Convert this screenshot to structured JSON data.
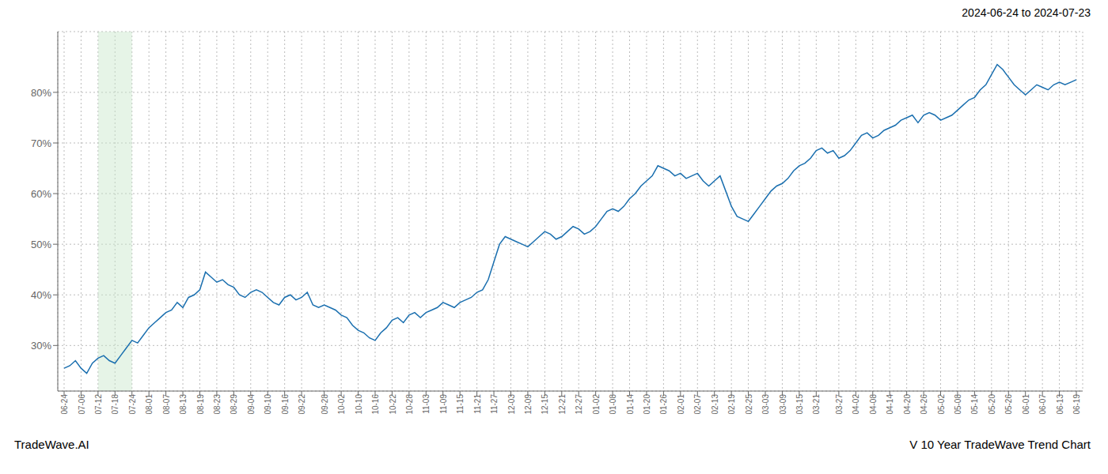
{
  "chart_data": {
    "type": "line",
    "title": "V 10 Year TradeWave Trend Chart",
    "subtitle": "2024-06-24 to 2024-07-23",
    "annotations": [
      "TradeWave.AI"
    ],
    "color": "#1a6faf",
    "grid": true,
    "ylim": [
      21,
      92
    ],
    "yticks": [
      {
        "value": 30,
        "label": "30%"
      },
      {
        "value": 40,
        "label": "40%"
      },
      {
        "value": 50,
        "label": "50%"
      },
      {
        "value": 60,
        "label": "60%"
      },
      {
        "value": 70,
        "label": "70%"
      },
      {
        "value": 80,
        "label": "80%"
      }
    ],
    "highlight": {
      "from": "07-12",
      "to": "07-24",
      "color": "#c8e6c9"
    },
    "categories": [
      "06-24",
      null,
      null,
      "07-06",
      null,
      null,
      "07-12",
      null,
      null,
      "07-18",
      null,
      null,
      "07-24",
      null,
      null,
      "08-01",
      null,
      null,
      "08-07",
      null,
      null,
      "08-13",
      null,
      null,
      "08-19",
      null,
      null,
      "08-23",
      null,
      null,
      "08-29",
      null,
      null,
      "09-04",
      null,
      null,
      "09-10",
      null,
      null,
      "09-16",
      null,
      null,
      "09-22",
      null,
      null,
      null,
      "09-28",
      null,
      null,
      "10-02",
      null,
      null,
      "10-10",
      null,
      null,
      "10-16",
      null,
      null,
      "10-22",
      null,
      null,
      "10-28",
      null,
      null,
      "11-03",
      null,
      null,
      "11-09",
      null,
      null,
      "11-15",
      null,
      null,
      "11-21",
      null,
      null,
      "11-27",
      null,
      null,
      "12-03",
      null,
      null,
      "12-09",
      null,
      null,
      "12-15",
      null,
      null,
      "12-21",
      null,
      null,
      "12-27",
      null,
      null,
      "01-02",
      null,
      null,
      "01-08",
      null,
      null,
      "01-14",
      null,
      null,
      "01-20",
      null,
      null,
      "01-26",
      null,
      null,
      "02-01",
      null,
      null,
      "02-07",
      null,
      null,
      "02-13",
      null,
      null,
      "02-19",
      null,
      null,
      "02-25",
      null,
      null,
      "03-03",
      null,
      null,
      "03-09",
      null,
      null,
      "03-15",
      null,
      null,
      "03-21",
      null,
      null,
      null,
      "03-27",
      null,
      null,
      "04-02",
      null,
      null,
      "04-08",
      null,
      null,
      "04-14",
      null,
      null,
      "04-20",
      null,
      null,
      "04-26",
      null,
      null,
      "05-02",
      null,
      null,
      "05-08",
      null,
      null,
      "05-14",
      null,
      null,
      "05-20",
      null,
      null,
      "05-26",
      null,
      null,
      "06-01",
      null,
      null,
      "06-07",
      null,
      null,
      "06-13",
      null,
      null,
      "06-19"
    ],
    "values": [
      25.5,
      26.0,
      27.0,
      25.5,
      24.5,
      26.5,
      27.5,
      28.0,
      27.0,
      26.5,
      28.0,
      29.5,
      31.0,
      30.5,
      32.0,
      33.5,
      34.5,
      35.5,
      36.5,
      37.0,
      38.5,
      37.5,
      39.5,
      40.0,
      41.0,
      44.5,
      43.5,
      42.5,
      43.0,
      42.0,
      41.5,
      40.0,
      39.5,
      40.5,
      41.0,
      40.5,
      39.5,
      38.5,
      38.0,
      39.5,
      40.0,
      39.0,
      39.5,
      40.5,
      38.0,
      37.5,
      38.0,
      37.5,
      37.0,
      36.0,
      35.5,
      34.0,
      33.0,
      32.5,
      31.5,
      31.0,
      32.5,
      33.5,
      35.0,
      35.5,
      34.5,
      36.0,
      36.5,
      35.5,
      36.5,
      37.0,
      37.5,
      38.5,
      38.0,
      37.5,
      38.5,
      39.0,
      39.5,
      40.5,
      41.0,
      43.0,
      46.5,
      50.0,
      51.5,
      51.0,
      50.5,
      50.0,
      49.5,
      50.5,
      51.5,
      52.5,
      52.0,
      51.0,
      51.5,
      52.5,
      53.5,
      53.0,
      52.0,
      52.5,
      53.5,
      55.0,
      56.5,
      57.0,
      56.5,
      57.5,
      59.0,
      60.0,
      61.5,
      62.5,
      63.5,
      65.5,
      65.0,
      64.5,
      63.5,
      64.0,
      63.0,
      63.5,
      64.0,
      62.5,
      61.5,
      62.5,
      63.5,
      60.5,
      57.5,
      55.5,
      55.0,
      54.5,
      56.0,
      57.5,
      59.0,
      60.5,
      61.5,
      62.0,
      63.0,
      64.5,
      65.5,
      66.0,
      67.0,
      68.5,
      69.0,
      68.0,
      68.5,
      67.0,
      67.5,
      68.5,
      70.0,
      71.5,
      72.0,
      71.0,
      71.5,
      72.5,
      73.0,
      73.5,
      74.5,
      75.0,
      75.5,
      74.0,
      75.5,
      76.0,
      75.5,
      74.5,
      75.0,
      75.5,
      76.5,
      77.5,
      78.5,
      79.0,
      80.5,
      81.5,
      83.5,
      85.5,
      84.5,
      83.0,
      81.5,
      80.5,
      79.5,
      80.5,
      81.5,
      81.0,
      80.5,
      81.5,
      82.0,
      81.5,
      82.0,
      82.5
    ]
  }
}
